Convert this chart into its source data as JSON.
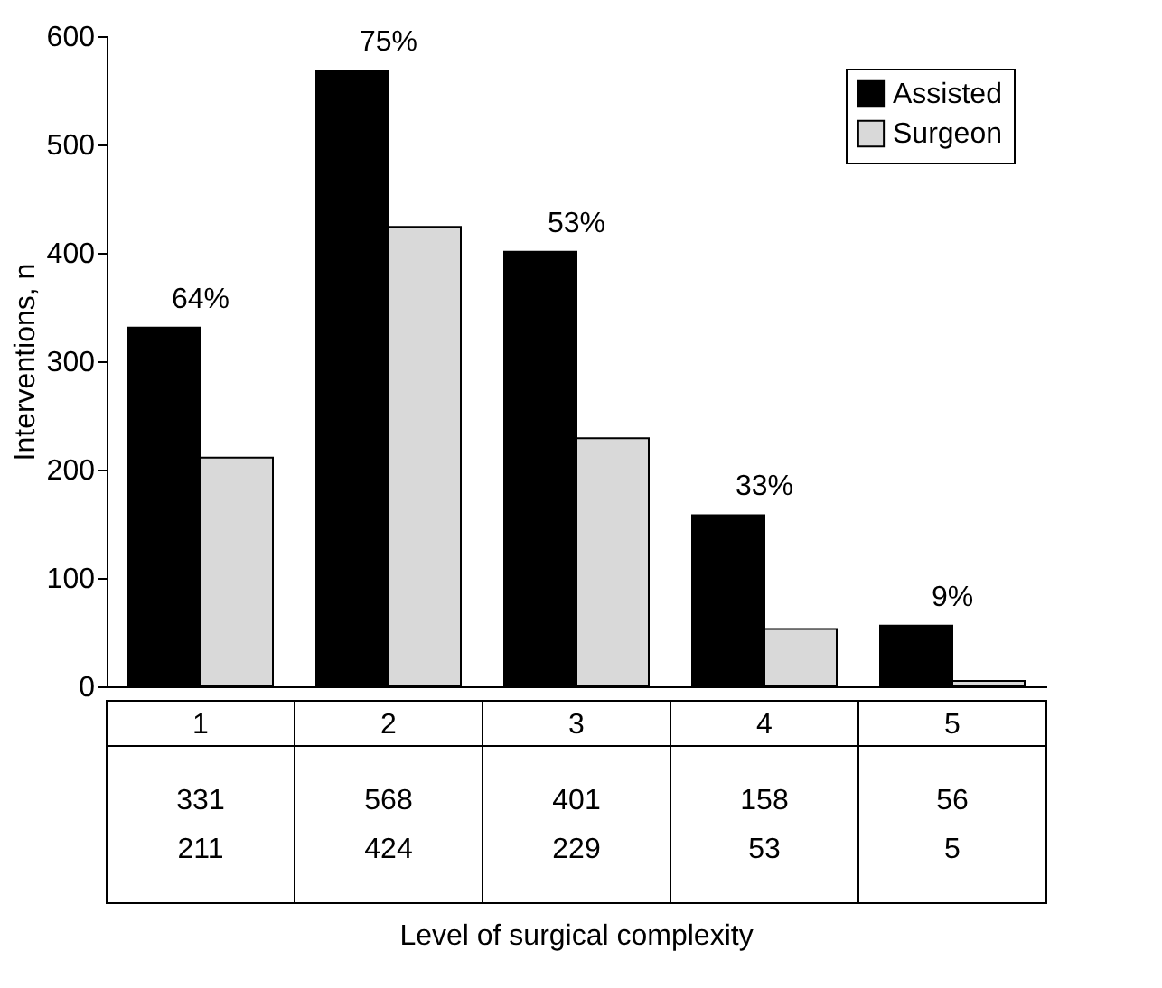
{
  "chart_data": {
    "type": "bar",
    "ylabel": "Interventions, n",
    "categories": [
      "1",
      "2",
      "3",
      "4",
      "5"
    ],
    "series": [
      {
        "name": "Assisted",
        "color": "#000000",
        "values": [
          331,
          568,
          401,
          158,
          56
        ]
      },
      {
        "name": "Surgeon",
        "color": "#d9d9d9",
        "values": [
          211,
          424,
          229,
          53,
          5
        ]
      }
    ],
    "ylim": [
      0,
      600
    ],
    "yticks": [
      0,
      100,
      200,
      300,
      400,
      500,
      600
    ],
    "grid": false,
    "legend": "top right",
    "data_labels": true,
    "annotations": [
      {
        "text": "64%",
        "x": "1",
        "y": 331
      },
      {
        "text": "75%",
        "x": "2",
        "y": 568
      },
      {
        "text": "53%",
        "x": "3",
        "y": 401
      },
      {
        "text": "33%",
        "x": "4",
        "y": 158
      },
      {
        "text": "9%",
        "x": "5",
        "y": 56
      },
      "Level of surgical complexity"
    ]
  }
}
